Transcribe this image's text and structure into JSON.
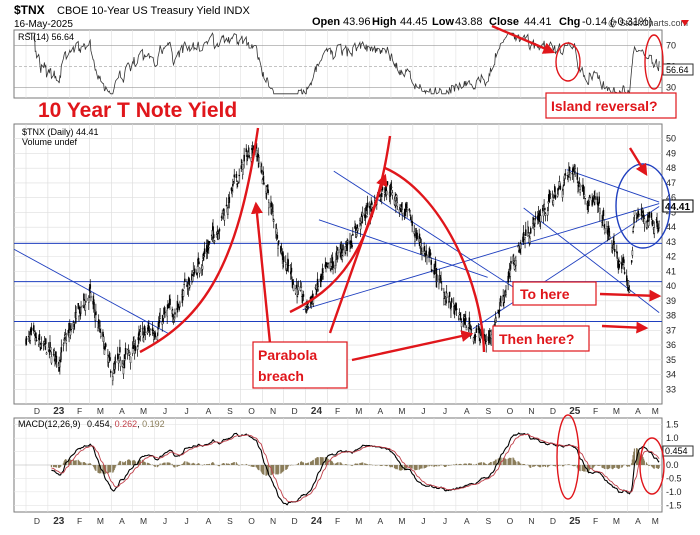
{
  "header": {
    "symbol": "$TNX",
    "description": "CBOE 10-Year US Treasury Yield INDX",
    "date": "16-May-2025",
    "watermark": "@ StockCharts.com",
    "ohlc": [
      {
        "label": "Open",
        "value": "43.96"
      },
      {
        "label": "High",
        "value": "44.45"
      },
      {
        "label": "Low",
        "value": "43.88"
      },
      {
        "label": "Close",
        "value": "44.41"
      },
      {
        "label": "Chg",
        "value": "-0.14 (-0.31%)"
      }
    ]
  },
  "annotations": {
    "title": "10 Year T Note Yield",
    "island": "Island reversal?",
    "to_here": "To here",
    "then_here": "Then here?",
    "parabola_line1": "Parabola",
    "parabola_line2": "breach"
  },
  "colors": {
    "price": "#000000",
    "trendline": "#1f3fbf",
    "annotation": "#e0161b",
    "macd_hist": "#8a7d5a",
    "signal": "#c0404a",
    "last_tag": "#000000"
  },
  "chart_data": [
    {
      "type": "line",
      "name": "RSI panel",
      "legend": "RSI(14) 56.64",
      "last_value": "56.64",
      "ylim": [
        20,
        85
      ],
      "y_ticks": [
        30,
        50,
        70
      ],
      "reference_lines": [
        30,
        50,
        70
      ],
      "grid": true
    },
    {
      "type": "candlestick",
      "name": "Price panel",
      "legend_price": "$TNX (Daily) 44.41",
      "legend_volume": "Volume undef",
      "last_value": "44.41",
      "ylim": [
        32,
        51
      ],
      "y_ticks": [
        33,
        34,
        35,
        36,
        37,
        38,
        39,
        40,
        41,
        42,
        43,
        44,
        45,
        46,
        47,
        48,
        49,
        50
      ],
      "x_labels": [
        "D",
        "23",
        "F",
        "M",
        "A",
        "M",
        "J",
        "J",
        "A",
        "S",
        "O",
        "N",
        "D",
        "24",
        "F",
        "M",
        "A",
        "M",
        "J",
        "J",
        "A",
        "S",
        "O",
        "N",
        "D",
        "25",
        "F",
        "M",
        "A",
        "M"
      ],
      "horizontal_levels": [
        37.6,
        40.3,
        42.9
      ],
      "approx_close_path": [
        {
          "date": "2022-12-01",
          "close": 36.5
        },
        {
          "date": "2023-01-15",
          "close": 35.0
        },
        {
          "date": "2023-03-01",
          "close": 39.5
        },
        {
          "date": "2023-04-01",
          "close": 34.0
        },
        {
          "date": "2023-05-15",
          "close": 36.5
        },
        {
          "date": "2023-07-01",
          "close": 38.5
        },
        {
          "date": "2023-08-20",
          "close": 43.0
        },
        {
          "date": "2023-10-20",
          "close": 49.8
        },
        {
          "date": "2023-12-01",
          "close": 42.0
        },
        {
          "date": "2024-01-01",
          "close": 38.5
        },
        {
          "date": "2024-03-01",
          "close": 43.0
        },
        {
          "date": "2024-04-25",
          "close": 47.0
        },
        {
          "date": "2024-06-01",
          "close": 44.0
        },
        {
          "date": "2024-08-01",
          "close": 38.0
        },
        {
          "date": "2024-09-15",
          "close": 36.2
        },
        {
          "date": "2024-11-01",
          "close": 43.0
        },
        {
          "date": "2025-01-14",
          "close": 47.9
        },
        {
          "date": "2025-02-20",
          "close": 45.0
        },
        {
          "date": "2025-04-04",
          "close": 39.9
        },
        {
          "date": "2025-04-11",
          "close": 44.8
        },
        {
          "date": "2025-05-16",
          "close": 44.41
        }
      ],
      "grid": true
    },
    {
      "type": "line",
      "name": "MACD panel",
      "legend_label": "MACD(12,26,9)",
      "macd": "0.454",
      "signal": "0.262",
      "histogram": "0.192",
      "ylim": [
        -1.75,
        1.75
      ],
      "y_ticks": [
        "1.5",
        "1.0",
        "0.5",
        "0.0",
        "-0.5",
        "-1.0",
        "-1.5"
      ],
      "x_labels": [
        "D",
        "23",
        "F",
        "M",
        "A",
        "M",
        "J",
        "J",
        "A",
        "S",
        "O",
        "N",
        "D",
        "24",
        "F",
        "M",
        "A",
        "M",
        "J",
        "J",
        "A",
        "S",
        "O",
        "N",
        "D",
        "25",
        "F",
        "M",
        "A",
        "M"
      ],
      "grid": true
    }
  ]
}
